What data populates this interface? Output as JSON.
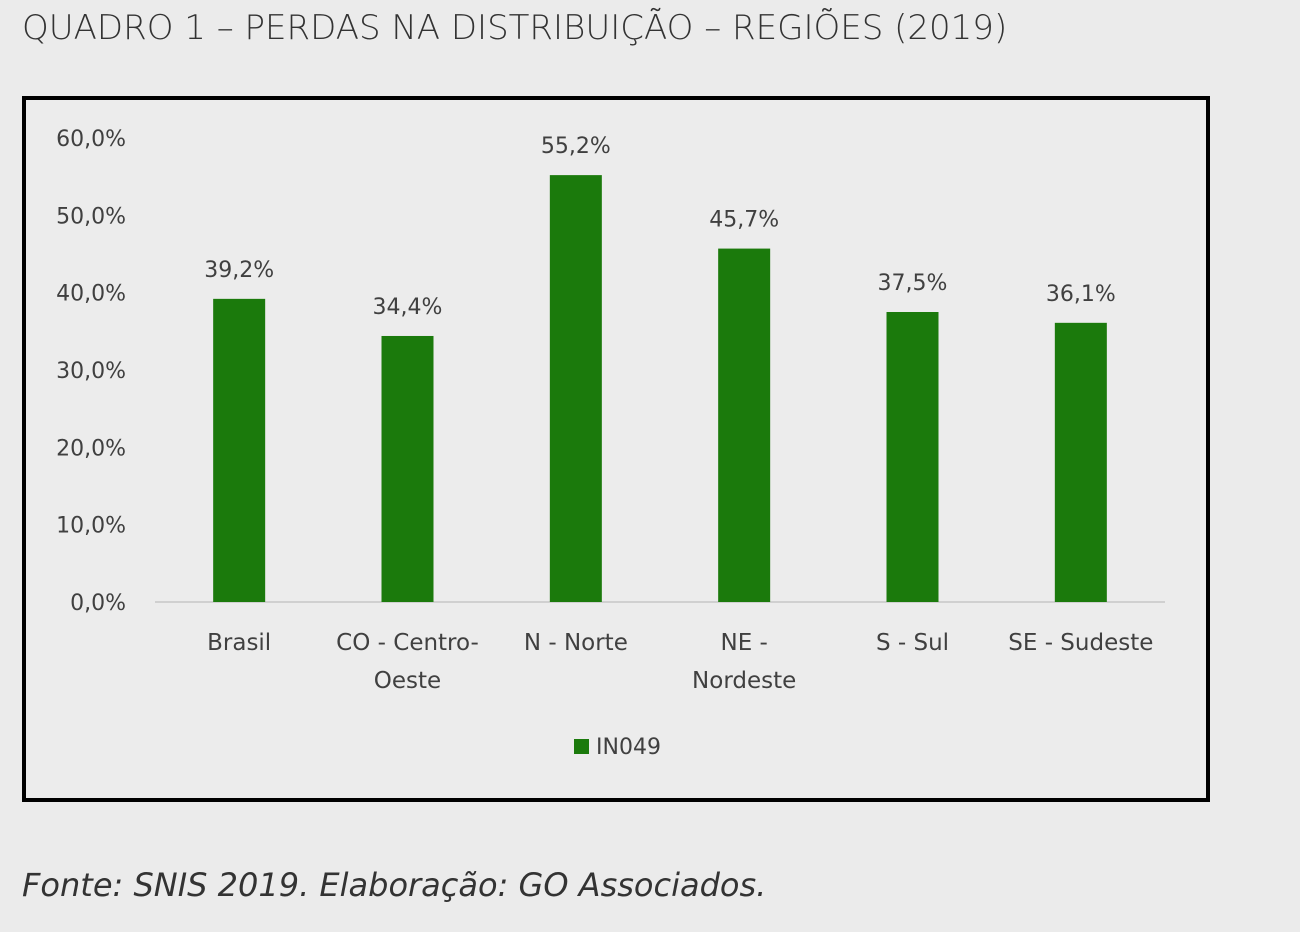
{
  "title": "QUADRO 1 – PERDAS NA DISTRIBUIÇÃO – REGIÕES (2019)",
  "source": "Fonte: SNIS 2019. Elaboração: GO Associados.",
  "chart_data": {
    "type": "bar",
    "categories": [
      [
        "Brasil"
      ],
      [
        "CO - Centro-",
        "Oeste"
      ],
      [
        "N - Norte"
      ],
      [
        "NE -",
        "Nordeste"
      ],
      [
        "S - Sul"
      ],
      [
        "SE - Sudeste"
      ]
    ],
    "series": [
      {
        "name": "IN049",
        "values": [
          39.2,
          34.4,
          55.2,
          45.7,
          37.5,
          36.1
        ],
        "color": "#1b7a0c"
      }
    ],
    "data_labels": [
      "39,2%",
      "34,4%",
      "55,2%",
      "45,7%",
      "37,5%",
      "36,1%"
    ],
    "y_ticks": [
      "0,0%",
      "10,0%",
      "20,0%",
      "30,0%",
      "40,0%",
      "50,0%",
      "60,0%"
    ],
    "ylim": [
      0,
      60
    ],
    "grid": false,
    "legend": "bottom"
  }
}
